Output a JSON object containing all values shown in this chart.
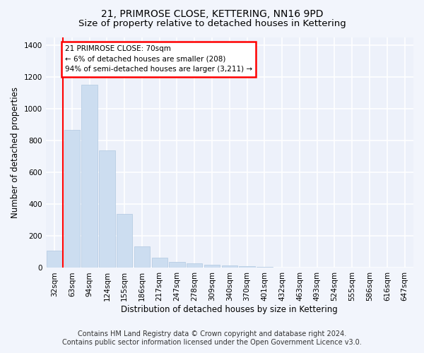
{
  "title": "21, PRIMROSE CLOSE, KETTERING, NN16 9PD",
  "subtitle": "Size of property relative to detached houses in Kettering",
  "xlabel": "Distribution of detached houses by size in Kettering",
  "ylabel": "Number of detached properties",
  "categories": [
    "32sqm",
    "63sqm",
    "94sqm",
    "124sqm",
    "155sqm",
    "186sqm",
    "217sqm",
    "247sqm",
    "278sqm",
    "309sqm",
    "340sqm",
    "370sqm",
    "401sqm",
    "432sqm",
    "463sqm",
    "493sqm",
    "524sqm",
    "555sqm",
    "586sqm",
    "616sqm",
    "647sqm"
  ],
  "values": [
    110,
    865,
    1150,
    740,
    340,
    135,
    65,
    38,
    27,
    18,
    15,
    10,
    5,
    0,
    0,
    0,
    0,
    0,
    0,
    0,
    0
  ],
  "bar_color": "#ccddf0",
  "bar_edge_color": "#b0c8e0",
  "red_line_x": 0.5,
  "annotation_text": "21 PRIMROSE CLOSE: 70sqm\n← 6% of detached houses are smaller (208)\n94% of semi-detached houses are larger (3,211) →",
  "annotation_box_color": "white",
  "annotation_box_edge_color": "red",
  "ylim": [
    0,
    1450
  ],
  "yticks": [
    0,
    200,
    400,
    600,
    800,
    1000,
    1200,
    1400
  ],
  "footer_line1": "Contains HM Land Registry data © Crown copyright and database right 2024.",
  "footer_line2": "Contains public sector information licensed under the Open Government Licence v3.0.",
  "bg_color": "#f2f5fc",
  "plot_bg_color": "#edf1fa",
  "grid_color": "#ffffff",
  "title_fontsize": 10,
  "subtitle_fontsize": 9.5,
  "xlabel_fontsize": 8.5,
  "ylabel_fontsize": 8.5,
  "tick_fontsize": 7.5,
  "footer_fontsize": 7
}
